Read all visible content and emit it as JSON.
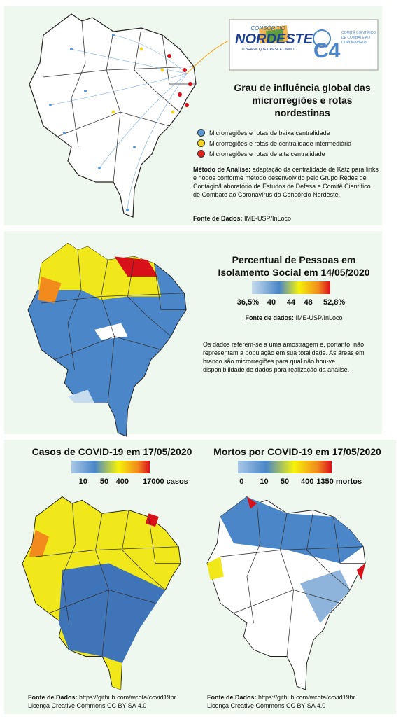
{
  "header": {
    "consorcio_label": "CONSÓRCIO",
    "consorcio_name": "NORDESTE",
    "consorcio_slogan": "O BRASIL QUE CRESCE UNIDO",
    "c4_logo": "C4",
    "c4_name": "COMITÊ CIENTÍFICO DE COMBATE AO CORONAVÍRUS"
  },
  "influence": {
    "title": "Grau de influência global das microrregiões e rotas nordestinas",
    "legend": [
      {
        "label": "Microrregiões e rotas de baixa centralidade",
        "color": "#5b9bd5"
      },
      {
        "label": "Microrregiões e rotas de centralidade intermediária",
        "color": "#f2d52b"
      },
      {
        "label": "Microrregiões e rotas de alta centralidade",
        "color": "#e0241b"
      }
    ],
    "method_label": "Método de Análise:",
    "method_text": "adaptação da centralidade de Katz para links e nodos conforme método desenvolvido pelo Grupo Redes de Contágio/Laboratório de Estudos de Defesa e Comitê Científico de Combate ao Coronavírus do Consórcio Nordeste.",
    "source_label": "Fonte de Dados:",
    "source_text": "IME-USP/InLoco"
  },
  "isolation": {
    "title": "Percentual de Pessoas em Isolamento Social em 14/05/2020",
    "scale_labels": [
      "36,5%",
      "40",
      "44",
      "48",
      "52,8%"
    ],
    "source_label": "Fonte de dados:",
    "source_text": "IME-USP/InLoco",
    "note": "Os dados referem-se a uma amostragem e, portanto, não representam a população em sua totalidade. As áreas em branco são microrregiões para qual não hou-ve disponibilidade de dados para realização da análise."
  },
  "cases": {
    "title": "Casos de COVID-19 em 17/05/2020",
    "scale_labels": [
      "10",
      "50",
      "400",
      "17000 casos"
    ],
    "source_label": "Fonte de Dados:",
    "source_text": "https://github.com/wcota/covid19br",
    "license": "Licença Creative Commons CC BY-SA 4.0"
  },
  "deaths": {
    "title": "Mortos por COVID-19 em 17/05/2020",
    "scale_labels": [
      "0",
      "10",
      "50",
      "400",
      "1350 mortos"
    ],
    "source_label": "Fonte de Dados:",
    "source_text": "https://github.com/wcota/covid19br",
    "license": "Licença Creative Commons CC BY-SA 4.0"
  }
}
